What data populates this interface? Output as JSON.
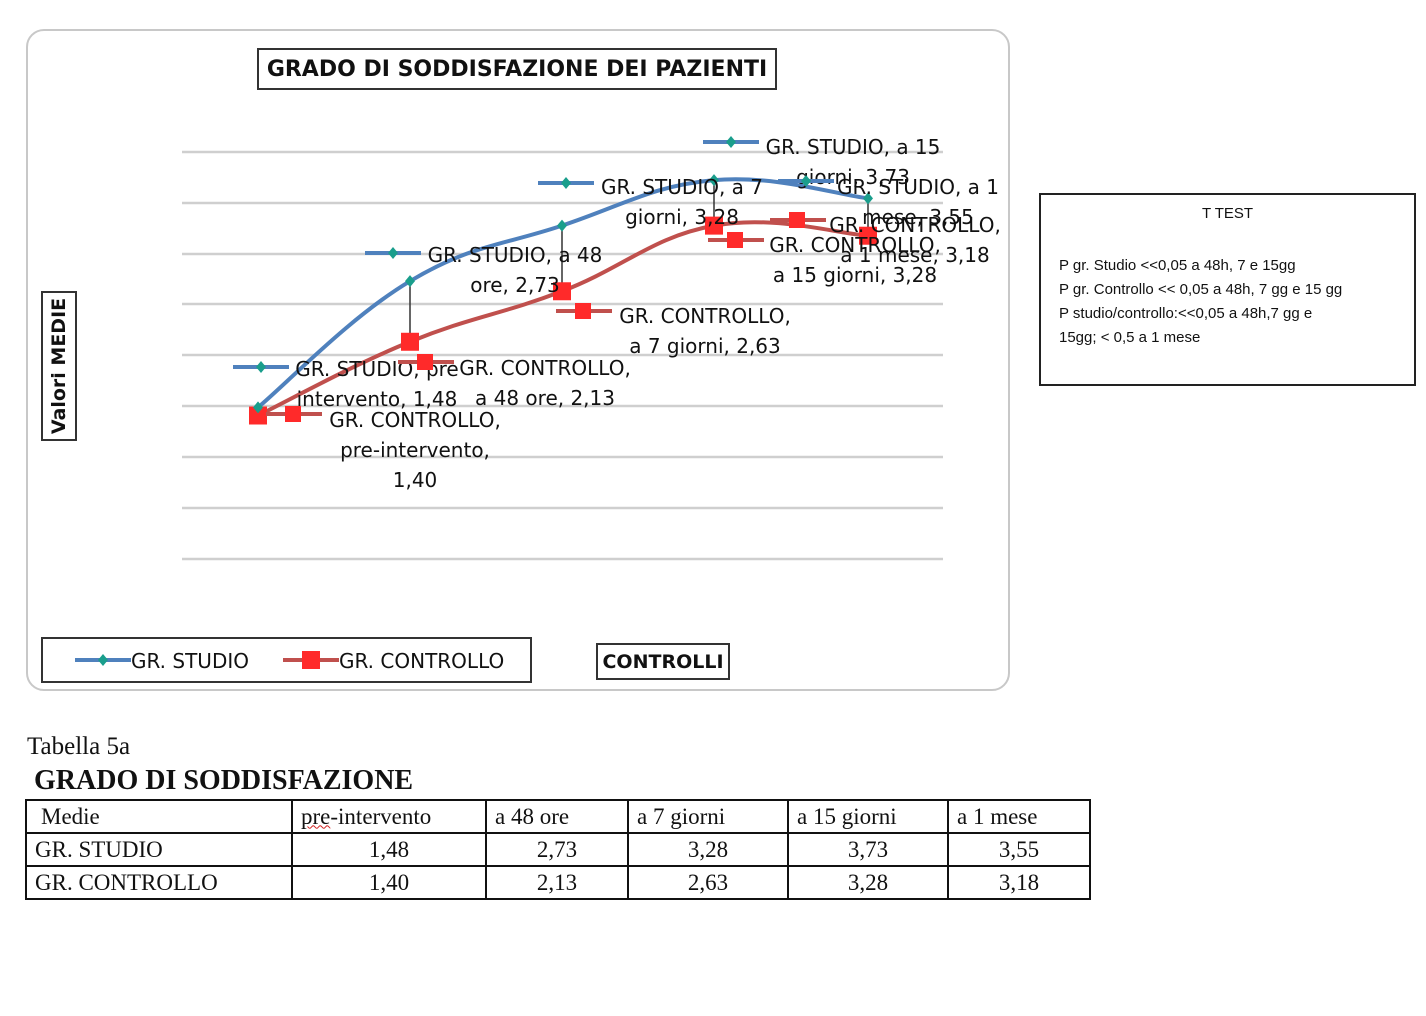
{
  "chart": {
    "title": "GRADO DI SODDISFAZIONE DEI PAZIENTI",
    "ylabel": "Valori MEDIE",
    "xlabel": "CONTROLLI",
    "legend": [
      "GR. STUDIO",
      "GR. CONTROLLO"
    ],
    "colors": {
      "studio": "#4f81bd",
      "controllo": "#c0504d",
      "controllo_marker": "#ff2a2a",
      "studio_marker": "#1a9e8c"
    }
  },
  "chart_data": {
    "type": "line",
    "title": "GRADO DI SODDISFAZIONE DEI PAZIENTI",
    "xlabel": "CONTROLLI",
    "ylabel": "Valori MEDIE",
    "categories": [
      "pre-intervento",
      "a 48 ore",
      "a 7 giorni",
      "a 15 giorni",
      "a 1 mese"
    ],
    "series": [
      {
        "name": "GR. STUDIO",
        "values": [
          1.48,
          2.73,
          3.28,
          3.73,
          3.55
        ]
      },
      {
        "name": "GR. CONTROLLO",
        "values": [
          1.4,
          2.13,
          2.63,
          3.28,
          3.18
        ]
      }
    ],
    "data_labels": {
      "studio": [
        [
          "GR. STUDIO, pre",
          "intervento, 1,48"
        ],
        [
          "GR. STUDIO,  a 48",
          "ore, 2,73"
        ],
        [
          "GR. STUDIO,  a 7",
          "giorni, 3,28"
        ],
        [
          "GR. STUDIO,  a 15",
          "giorni, 3,73"
        ],
        [
          "GR. STUDIO,  a 1",
          "mese, 3,55"
        ]
      ],
      "controllo": [
        [
          "GR. CONTROLLO,",
          "pre-intervento,",
          "1,40"
        ],
        [
          "GR. CONTROLLO,",
          "a 48 ore, 2,13"
        ],
        [
          "GR. CONTROLLO,",
          "a 7 giorni, 2,63"
        ],
        [
          "GR. CONTROLLO,",
          "a 15 giorni, 3,28"
        ],
        [
          "GR. CONTROLLO,",
          "a 1 mese, 3,18"
        ]
      ]
    },
    "grid": true,
    "legend_position": "bottom-left"
  },
  "ttest": {
    "title": "T TEST",
    "lines": [
      "P gr. Studio <<0,05 a 48h, 7 e 15gg",
      "P gr. Controllo << 0,05 a 48h, 7 gg e 15 gg",
      "P studio/controllo:<<0,05 a 48h,7 gg e",
      "15gg; < 0,5 a 1 mese"
    ]
  },
  "table": {
    "caption": "Tabella 5a",
    "heading": "GRADO DI SODDISFAZIONE",
    "header": [
      "Medie",
      "pre",
      "-intervento",
      "a 48 ore",
      "a 7 giorni",
      "a 15 giorni",
      "a 1 mese"
    ],
    "rows": [
      [
        "GR. STUDIO",
        "1,48",
        "2,73",
        "3,28",
        "3,73",
        "3,55"
      ],
      [
        "GR. CONTROLLO",
        "1,40",
        "2,13",
        "2,63",
        "3,28",
        "3,18"
      ]
    ]
  }
}
